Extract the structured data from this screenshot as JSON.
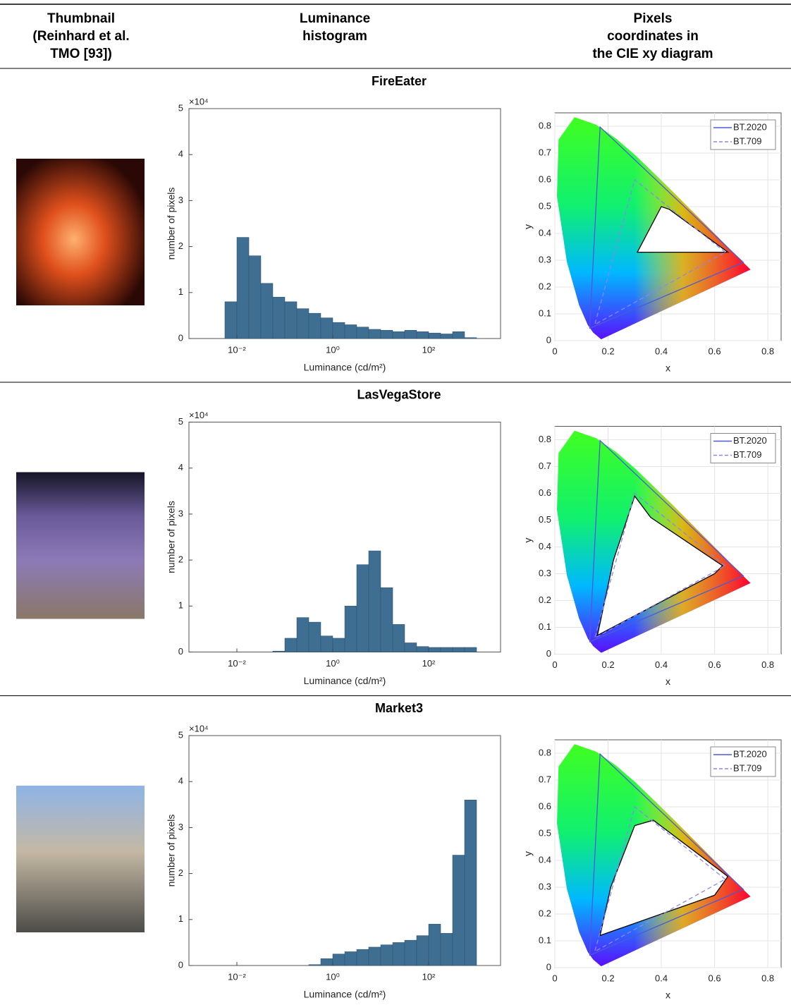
{
  "header": {
    "columns": [
      [
        "Thumbnail",
        "(Reinhard et al.",
        "TMO [93])"
      ],
      [
        "Luminance",
        "histogram"
      ],
      [
        "Pixels",
        "coordinates in",
        "the CIE xy diagram"
      ]
    ]
  },
  "spectral_locus": {
    "x": [
      0.174,
      0.144,
      0.124,
      0.091,
      0.045,
      0.008,
      0.014,
      0.074,
      0.155,
      0.23,
      0.302,
      0.373,
      0.444,
      0.512,
      0.575,
      0.627,
      0.691,
      0.735
    ],
    "y": [
      0.005,
      0.03,
      0.058,
      0.133,
      0.295,
      0.538,
      0.75,
      0.834,
      0.806,
      0.754,
      0.692,
      0.624,
      0.555,
      0.487,
      0.424,
      0.372,
      0.308,
      0.265
    ]
  },
  "rows": [
    {
      "title": "FireEater",
      "chart_data": [
        {
          "type": "histogram",
          "xlabel": "Luminance (cd/m²)",
          "ylabel": "number of pixels",
          "y_multiplier": "×10⁴",
          "color": "#3f6e93",
          "log_x": true,
          "bins": [
            0.00562,
            0.01,
            0.0178,
            0.0316,
            0.0562,
            0.1,
            0.178,
            0.316,
            0.562,
            1,
            1.78,
            3.16,
            5.62,
            10,
            17.8,
            31.6,
            56.2,
            100,
            178,
            316,
            562,
            1000
          ],
          "values": [
            8000,
            22000,
            18000,
            12000,
            9000,
            8000,
            6500,
            5500,
            4500,
            3500,
            3000,
            2500,
            2000,
            1800,
            1500,
            1800,
            1500,
            1200,
            1000,
            1500,
            200
          ],
          "xlim": [
            0.001,
            3162
          ],
          "ylim": [
            0,
            50000
          ],
          "xticks": [
            {
              "value": 0.01,
              "label": "10⁻²"
            },
            {
              "value": 1,
              "label": "10⁰"
            },
            {
              "value": 100,
              "label": "10²"
            }
          ],
          "yticks": [
            0,
            {
              "value": 10000,
              "label": "1"
            },
            {
              "value": 20000,
              "label": "2"
            },
            {
              "value": 30000,
              "label": "3"
            },
            {
              "value": 40000,
              "label": "4"
            },
            {
              "value": 50000,
              "label": "5"
            }
          ]
        },
        {
          "type": "line",
          "xlabel": "x",
          "ylabel": "y",
          "grid": true,
          "legend": "upper right",
          "xlim": [
            0,
            0.85
          ],
          "ylim": [
            0,
            0.85
          ],
          "xticks": [
            0,
            0.2,
            0.4,
            0.6,
            0.8
          ],
          "yticks": [
            0,
            0.1,
            0.2,
            0.3,
            0.4,
            0.5,
            0.6,
            0.7,
            0.8
          ],
          "series": [
            {
              "color": "#000000",
              "fill": "#ffffff",
              "x": [
                0.31,
                0.4,
                0.43,
                0.65
              ],
              "y": [
                0.33,
                0.5,
                0.49,
                0.33
              ]
            },
            {
              "name": "BT.2020",
              "color": "#4b5bd6",
              "x": [
                0.708,
                0.17,
                0.131
              ],
              "y": [
                0.292,
                0.797,
                0.046
              ]
            },
            {
              "name": "BT.709",
              "color": "#8a86f0",
              "dash": true,
              "x": [
                0.64,
                0.3,
                0.15
              ],
              "y": [
                0.33,
                0.6,
                0.06
              ]
            }
          ]
        }
      ]
    },
    {
      "title": "LasVegaStore",
      "chart_data": [
        {
          "type": "histogram",
          "xlabel": "Luminance (cd/m²)",
          "ylabel": "number of pixels",
          "y_multiplier": "×10⁴",
          "color": "#3f6e93",
          "log_x": true,
          "bins": [
            0.00562,
            0.01,
            0.0178,
            0.0316,
            0.0562,
            0.1,
            0.178,
            0.316,
            0.562,
            1,
            1.78,
            3.16,
            5.62,
            10,
            17.8,
            31.6,
            56.2,
            100,
            178,
            316,
            562,
            1000
          ],
          "values": [
            0,
            0,
            0,
            0,
            200,
            3000,
            7500,
            6500,
            3500,
            3000,
            10000,
            19000,
            22000,
            14000,
            6000,
            2000,
            1200,
            1000,
            1000,
            1000,
            1000
          ],
          "xlim": [
            0.001,
            3162
          ],
          "ylim": [
            0,
            50000
          ],
          "xticks": [
            {
              "value": 0.01,
              "label": "10⁻²"
            },
            {
              "value": 1,
              "label": "10⁰"
            },
            {
              "value": 100,
              "label": "10²"
            }
          ],
          "yticks": [
            0,
            {
              "value": 10000,
              "label": "1"
            },
            {
              "value": 20000,
              "label": "2"
            },
            {
              "value": 30000,
              "label": "3"
            },
            {
              "value": 40000,
              "label": "4"
            },
            {
              "value": 50000,
              "label": "5"
            }
          ]
        },
        {
          "type": "line",
          "xlabel": "x",
          "ylabel": "y",
          "grid": true,
          "legend": "upper right",
          "xlim": [
            0,
            0.85
          ],
          "ylim": [
            0,
            0.85
          ],
          "xticks": [
            0,
            0.2,
            0.4,
            0.6,
            0.8
          ],
          "yticks": [
            0,
            0.1,
            0.2,
            0.3,
            0.4,
            0.5,
            0.6,
            0.7,
            0.8
          ],
          "series": [
            {
              "color": "#000000",
              "fill": "#ffffff",
              "x": [
                0.3,
                0.36,
                0.63,
                0.6,
                0.16,
                0.22
              ],
              "y": [
                0.59,
                0.51,
                0.33,
                0.3,
                0.07,
                0.35
              ]
            },
            {
              "name": "BT.2020",
              "color": "#4b5bd6",
              "x": [
                0.708,
                0.17,
                0.131
              ],
              "y": [
                0.292,
                0.797,
                0.046
              ]
            },
            {
              "name": "BT.709",
              "color": "#8a86f0",
              "dash": true,
              "x": [
                0.64,
                0.3,
                0.15
              ],
              "y": [
                0.33,
                0.6,
                0.06
              ]
            }
          ]
        }
      ]
    },
    {
      "title": "Market3",
      "chart_data": [
        {
          "type": "histogram",
          "xlabel": "Luminance (cd/m²)",
          "ylabel": "number of pixels",
          "y_multiplier": "×10⁴",
          "color": "#3f6e93",
          "log_x": true,
          "bins": [
            0.00562,
            0.01,
            0.0178,
            0.0316,
            0.0562,
            0.1,
            0.178,
            0.316,
            0.562,
            1,
            1.78,
            3.16,
            5.62,
            10,
            17.8,
            31.6,
            56.2,
            100,
            178,
            316,
            562,
            1000
          ],
          "values": [
            0,
            0,
            0,
            0,
            0,
            0,
            0,
            200,
            1500,
            2500,
            3000,
            3500,
            4000,
            4500,
            5000,
            5500,
            6500,
            9000,
            7000,
            24000,
            36000
          ],
          "xlim": [
            0.001,
            3162
          ],
          "ylim": [
            0,
            50000
          ],
          "xticks": [
            {
              "value": 0.01,
              "label": "10⁻²"
            },
            {
              "value": 1,
              "label": "10⁰"
            },
            {
              "value": 100,
              "label": "10²"
            }
          ],
          "yticks": [
            0,
            {
              "value": 10000,
              "label": "1"
            },
            {
              "value": 20000,
              "label": "2"
            },
            {
              "value": 30000,
              "label": "3"
            },
            {
              "value": 40000,
              "label": "4"
            },
            {
              "value": 50000,
              "label": "5"
            }
          ]
        },
        {
          "type": "line",
          "xlabel": "x",
          "ylabel": "y",
          "grid": true,
          "legend": "upper right",
          "xlim": [
            0,
            0.85
          ],
          "ylim": [
            0,
            0.85
          ],
          "xticks": [
            0,
            0.2,
            0.4,
            0.6,
            0.8
          ],
          "yticks": [
            0,
            0.1,
            0.2,
            0.3,
            0.4,
            0.5,
            0.6,
            0.7,
            0.8
          ],
          "series": [
            {
              "color": "#000000",
              "fill": "#ffffff",
              "x": [
                0.3,
                0.37,
                0.65,
                0.6,
                0.17,
                0.21
              ],
              "y": [
                0.53,
                0.55,
                0.34,
                0.27,
                0.12,
                0.3
              ]
            },
            {
              "name": "BT.2020",
              "color": "#4b5bd6",
              "x": [
                0.708,
                0.17,
                0.131
              ],
              "y": [
                0.292,
                0.797,
                0.046
              ]
            },
            {
              "name": "BT.709",
              "color": "#8a86f0",
              "dash": true,
              "x": [
                0.64,
                0.3,
                0.15
              ],
              "y": [
                0.33,
                0.6,
                0.06
              ]
            }
          ]
        }
      ]
    }
  ]
}
